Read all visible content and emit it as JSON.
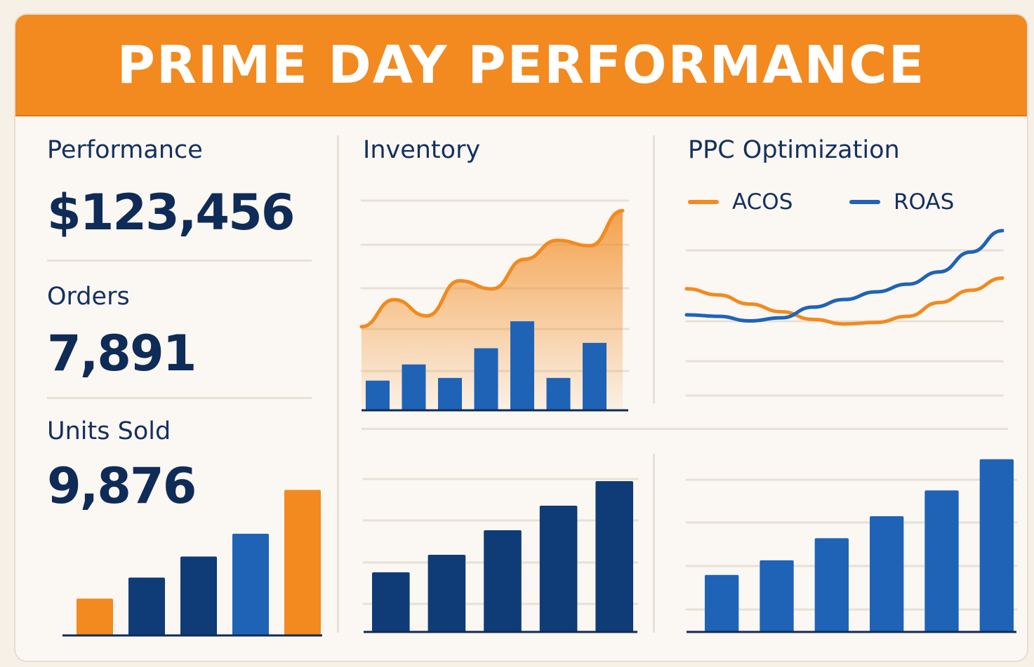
{
  "header": {
    "title": "PRIME DAY PERFORMANCE"
  },
  "metrics": {
    "performance": {
      "label": "Performance",
      "value": "$123,456"
    },
    "orders": {
      "label": "Orders",
      "value": "7,891"
    },
    "units_sold": {
      "label": "Units Sold",
      "value": "9,876"
    }
  },
  "panels": {
    "inventory_title": "Inventory",
    "ppc_title": "PPC Optimization"
  },
  "colors": {
    "orange": "#f28a1f",
    "blue": "#1f63b7",
    "navy": "#0f3c76",
    "grid": "#e7e0d7"
  },
  "chart_data": [
    {
      "type": "line-bar",
      "title": "Inventory",
      "series": [
        {
          "type": "area",
          "points": [
            {
              "x": 0,
              "y": 31
            },
            {
              "x": 1,
              "y": 41
            },
            {
              "x": 2,
              "y": 35
            },
            {
              "x": 3,
              "y": 48
            },
            {
              "x": 4,
              "y": 45
            },
            {
              "x": 5,
              "y": 56
            },
            {
              "x": 6,
              "y": 63
            },
            {
              "x": 7,
              "y": 61
            },
            {
              "x": 8,
              "y": 74
            }
          ]
        },
        {
          "type": "bar",
          "values": [
            11,
            17,
            12,
            23,
            33,
            12,
            25
          ]
        }
      ],
      "ylim": [
        0,
        78
      ]
    },
    {
      "type": "line",
      "title": "PPC Optimization",
      "series": [
        {
          "name": "ACOS",
          "color": "#f28a1f",
          "points": [
            {
              "x": 0,
              "y": 62
            },
            {
              "x": 1,
              "y": 58
            },
            {
              "x": 2,
              "y": 52
            },
            {
              "x": 3,
              "y": 47
            },
            {
              "x": 4,
              "y": 42
            },
            {
              "x": 5,
              "y": 39
            },
            {
              "x": 6,
              "y": 40
            },
            {
              "x": 7,
              "y": 44
            },
            {
              "x": 8,
              "y": 53
            },
            {
              "x": 9,
              "y": 61
            },
            {
              "x": 10,
              "y": 69
            }
          ]
        },
        {
          "name": "ROAS",
          "color": "#1f63b7",
          "points": [
            {
              "x": 0,
              "y": 45
            },
            {
              "x": 1,
              "y": 44
            },
            {
              "x": 2,
              "y": 41
            },
            {
              "x": 3,
              "y": 43
            },
            {
              "x": 4,
              "y": 50
            },
            {
              "x": 5,
              "y": 55
            },
            {
              "x": 6,
              "y": 60
            },
            {
              "x": 7,
              "y": 65
            },
            {
              "x": 8,
              "y": 73
            },
            {
              "x": 9,
              "y": 86
            },
            {
              "x": 10,
              "y": 100
            }
          ]
        }
      ],
      "ylim": [
        0,
        110
      ]
    },
    {
      "type": "bar",
      "title": "Units Sold",
      "values": [
        21,
        33,
        45,
        58,
        83
      ],
      "colors": [
        "#f28a1f",
        "#0f3c76",
        "#0f3c76",
        "#1f63b7",
        "#f28a1f"
      ],
      "ylim": [
        0,
        100
      ]
    },
    {
      "type": "bar",
      "values": [
        34,
        44,
        58,
        72,
        86
      ],
      "colors": [
        "#0f3c76",
        "#0f3c76",
        "#0f3c76",
        "#0f3c76",
        "#0f3c76"
      ],
      "ylim": [
        0,
        100
      ]
    },
    {
      "type": "bar",
      "values": [
        31,
        39,
        51,
        63,
        77,
        94
      ],
      "colors": [
        "#1f63b7",
        "#1f63b7",
        "#1f63b7",
        "#1f63b7",
        "#1f63b7",
        "#1f63b7"
      ],
      "ylim": [
        0,
        100
      ]
    }
  ]
}
